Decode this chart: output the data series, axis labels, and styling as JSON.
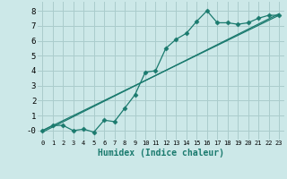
{
  "xlabel": "Humidex (Indice chaleur)",
  "background_color": "#cce8e8",
  "grid_color": "#aacccc",
  "line_color": "#1a7a6e",
  "xlim": [
    -0.5,
    23.5
  ],
  "ylim": [
    -0.6,
    8.6
  ],
  "xticks": [
    0,
    1,
    2,
    3,
    4,
    5,
    6,
    7,
    8,
    9,
    10,
    11,
    12,
    13,
    14,
    15,
    16,
    17,
    18,
    19,
    20,
    21,
    22,
    23
  ],
  "yticks": [
    0,
    1,
    2,
    3,
    4,
    5,
    6,
    7,
    8
  ],
  "ytick_labels": [
    "-0",
    "1",
    "2",
    "3",
    "4",
    "5",
    "6",
    "7",
    "8"
  ],
  "series1_x": [
    0,
    1,
    2,
    3,
    4,
    5,
    6,
    7,
    8,
    9,
    10,
    11,
    12,
    13,
    14,
    15,
    16,
    17,
    18,
    19,
    20,
    21,
    22,
    23
  ],
  "series1_y": [
    0.0,
    0.35,
    0.35,
    0.0,
    0.1,
    -0.1,
    0.7,
    0.6,
    1.5,
    2.4,
    3.9,
    4.0,
    5.5,
    6.1,
    6.5,
    7.3,
    8.0,
    7.2,
    7.2,
    7.1,
    7.2,
    7.5,
    7.7,
    7.7
  ],
  "series2_x": [
    0,
    23
  ],
  "series2_y": [
    0.0,
    7.7
  ],
  "series3_x": [
    0,
    23
  ],
  "series3_y": [
    -0.1,
    7.8
  ]
}
